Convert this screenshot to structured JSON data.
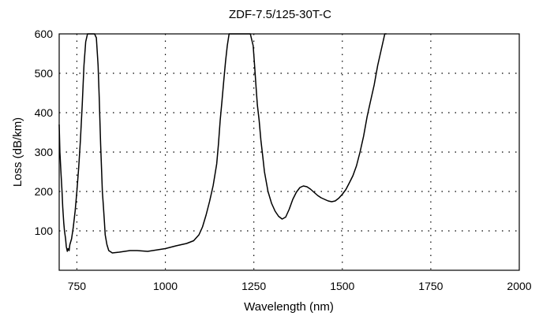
{
  "chart_data": {
    "type": "line",
    "title": "ZDF-7.5/125-30T-C",
    "xlabel": "Wavelength (nm)",
    "ylabel": "Loss (dB/km)",
    "xlim": [
      700,
      2000
    ],
    "ylim": [
      0,
      600
    ],
    "xticks": [
      750,
      1000,
      1250,
      1500,
      1750,
      2000
    ],
    "yticks": [
      100,
      200,
      300,
      400,
      500,
      600
    ],
    "grid": true,
    "legend": "none",
    "colors": {
      "line": "#000000",
      "grid": "#000000",
      "axis": "#000000"
    },
    "series": [
      {
        "x": [
          700,
          702,
          705,
          708,
          710,
          713,
          715,
          718,
          720,
          723,
          725,
          728,
          730,
          735,
          740,
          745,
          750,
          755,
          760,
          765,
          770,
          775,
          780,
          785,
          790,
          800,
          805,
          810,
          813,
          815,
          817,
          820,
          822,
          825,
          828,
          830,
          835,
          840,
          850,
          870,
          900,
          920,
          950,
          1000,
          1030,
          1060,
          1080,
          1095,
          1105,
          1115,
          1125,
          1135,
          1145,
          1150,
          1155,
          1160,
          1165,
          1170,
          1175,
          1180,
          1185,
          1190,
          1240,
          1248,
          1252,
          1256,
          1260,
          1265,
          1270,
          1275,
          1280,
          1290,
          1300,
          1310,
          1320,
          1330,
          1340,
          1350,
          1360,
          1370,
          1380,
          1390,
          1400,
          1410,
          1420,
          1430,
          1440,
          1450,
          1460,
          1470,
          1480,
          1490,
          1500,
          1510,
          1520,
          1530,
          1540,
          1550,
          1560,
          1570,
          1580,
          1590,
          1600,
          1610,
          1620,
          1625
        ],
        "y": [
          370,
          300,
          250,
          200,
          160,
          120,
          100,
          80,
          60,
          48,
          55,
          50,
          65,
          80,
          110,
          150,
          200,
          260,
          330,
          420,
          520,
          580,
          600,
          600,
          600,
          600,
          590,
          520,
          440,
          380,
          320,
          250,
          200,
          160,
          120,
          90,
          65,
          50,
          44,
          46,
          50,
          50,
          48,
          55,
          62,
          68,
          75,
          90,
          110,
          140,
          175,
          215,
          270,
          320,
          380,
          430,
          480,
          530,
          570,
          600,
          600,
          600,
          600,
          570,
          520,
          470,
          420,
          380,
          330,
          290,
          250,
          200,
          170,
          150,
          137,
          130,
          135,
          155,
          180,
          198,
          210,
          214,
          212,
          206,
          198,
          190,
          184,
          180,
          176,
          174,
          176,
          183,
          193,
          205,
          222,
          240,
          265,
          300,
          340,
          390,
          430,
          470,
          520,
          560,
          600,
          600
        ]
      }
    ]
  }
}
